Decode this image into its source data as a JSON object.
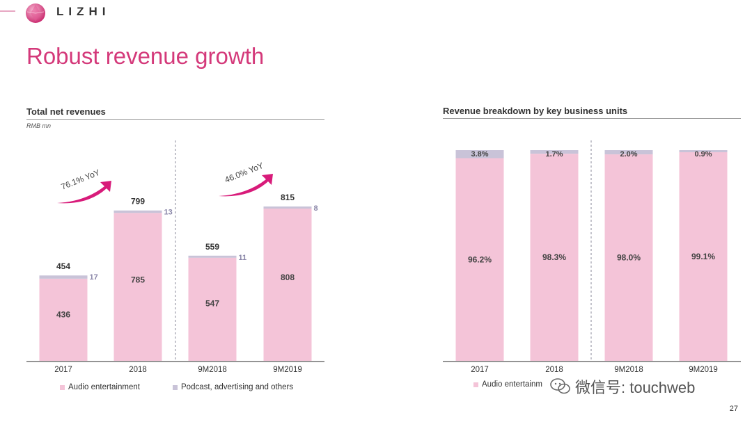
{
  "brand": {
    "name": "LIZHI",
    "color": "#d4397a"
  },
  "slide": {
    "title": "Robust revenue growth",
    "page_number": "27"
  },
  "left": {
    "title": "Total net revenues",
    "unit": "RMB mn"
  },
  "right": {
    "title": "Revenue breakdown by key business units"
  },
  "legend": {
    "audio": "Audio entertainment",
    "podcast": "Podcast, advertising and others",
    "audio_truncated": "Audio entertainm"
  },
  "growth": {
    "first": "76.1% YoY",
    "second": "46.0% YoY"
  },
  "watermark": "微信号: touchweb",
  "colors": {
    "audio": "#f4c4d8",
    "podcast": "#c9c3d8",
    "arrow": "#d81b7a",
    "value_text": "#444444"
  },
  "chart_data": [
    {
      "type": "bar",
      "stacked": true,
      "title": "Total net revenues",
      "ylabel": "RMB mn",
      "categories": [
        "2017",
        "2018",
        "9M2018",
        "9M2019"
      ],
      "series": [
        {
          "name": "Audio entertainment",
          "values": [
            436,
            785,
            547,
            808
          ]
        },
        {
          "name": "Podcast, advertising and others",
          "values": [
            17,
            13,
            11,
            8
          ]
        }
      ],
      "totals": [
        454,
        799,
        559,
        815
      ],
      "ylim": [
        0,
        1000
      ],
      "divider_after_index": 1,
      "annotations": [
        "76.1% YoY",
        "46.0% YoY"
      ]
    },
    {
      "type": "bar",
      "stacked": true,
      "percent": true,
      "title": "Revenue breakdown by key business units",
      "categories": [
        "2017",
        "2018",
        "9M2018",
        "9M2019"
      ],
      "series": [
        {
          "name": "Audio entertainment",
          "values": [
            96.2,
            98.3,
            98.0,
            99.1
          ],
          "labels": [
            "96.2%",
            "98.3%",
            "98.0%",
            "99.1%"
          ]
        },
        {
          "name": "Podcast, advertising and others",
          "values": [
            3.8,
            1.7,
            2.0,
            0.9
          ],
          "labels": [
            "3.8%",
            "1.7%",
            "2.0%",
            "0.9%"
          ]
        }
      ],
      "ylim": [
        0,
        100
      ],
      "divider_after_index": 1
    }
  ]
}
